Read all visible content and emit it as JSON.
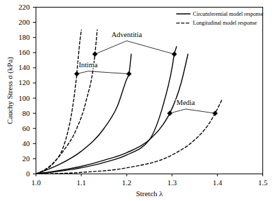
{
  "chart_data": {
    "type": "line",
    "x_label": "Stretch λ",
    "y_label": "Cauchy Stress σ (kPa)",
    "xlim": [
      1.0,
      1.5
    ],
    "ylim": [
      0,
      220
    ],
    "xticks": [
      {
        "value": 1.0,
        "label": "1.0"
      },
      {
        "value": 1.1,
        "label": "1.1"
      },
      {
        "value": 1.2,
        "label": "1.2"
      },
      {
        "value": 1.3,
        "label": "1.3"
      },
      {
        "value": 1.4,
        "label": "1.4"
      },
      {
        "value": 1.5,
        "label": "1.5"
      }
    ],
    "yticks": [
      0,
      20,
      40,
      60,
      80,
      100,
      120,
      140,
      160,
      180,
      200,
      220
    ],
    "grid": false,
    "legend": "top-right",
    "legend_items": [
      {
        "label": "Circumferential model response",
        "line_style": "solid"
      },
      {
        "label": "Longitudinal model response",
        "line_style": "dashed"
      }
    ],
    "series": [
      {
        "name": "Intima",
        "line_style": "dashed",
        "color": "#000000",
        "x": [
          1.0,
          1.02,
          1.04,
          1.06,
          1.07,
          1.08,
          1.09,
          1.095,
          1.1
        ],
        "values": [
          0,
          5,
          15,
          35,
          55,
          85,
          132,
          165,
          190
        ]
      },
      {
        "name": "Intima",
        "line_style": "solid",
        "color": "#000000",
        "x": [
          1.0,
          1.05,
          1.1,
          1.15,
          1.18,
          1.2,
          1.205,
          1.21
        ],
        "values": [
          0,
          12,
          30,
          60,
          90,
          125,
          132,
          158
        ]
      },
      {
        "name": "Adventitia",
        "line_style": "dashed",
        "color": "#000000",
        "x": [
          1.0,
          1.03,
          1.06,
          1.09,
          1.11,
          1.13,
          1.135
        ],
        "values": [
          0,
          10,
          30,
          60,
          95,
          158,
          190
        ]
      },
      {
        "name": "Adventitia",
        "line_style": "solid",
        "color": "#000000",
        "x": [
          1.0,
          1.1,
          1.15,
          1.2,
          1.25,
          1.28,
          1.3,
          1.305,
          1.31
        ],
        "values": [
          0,
          8,
          15,
          25,
          45,
          90,
          140,
          158,
          168
        ]
      },
      {
        "name": "Media",
        "line_style": "solid",
        "color": "#000000",
        "x": [
          1.0,
          1.1,
          1.15,
          1.2,
          1.25,
          1.28,
          1.295,
          1.32,
          1.335
        ],
        "values": [
          0,
          10,
          18,
          28,
          45,
          65,
          80,
          120,
          158
        ]
      },
      {
        "name": "Media",
        "line_style": "dashed",
        "color": "#000000",
        "x": [
          1.0,
          1.1,
          1.2,
          1.3,
          1.35,
          1.38,
          1.395,
          1.41
        ],
        "values": [
          0,
          2,
          8,
          25,
          45,
          65,
          80,
          98
        ]
      }
    ],
    "annotations": [
      {
        "text": "Intima",
        "x": 1.115,
        "y": 140,
        "marker": "diamond",
        "points": [
          [
            1.09,
            132
          ],
          [
            1.205,
            132
          ]
        ]
      },
      {
        "text": "Adventitia",
        "x": 1.2,
        "y": 180,
        "marker": "diamond",
        "points": [
          [
            1.13,
            158
          ],
          [
            1.305,
            158
          ]
        ]
      },
      {
        "text": "Media",
        "x": 1.33,
        "y": 90,
        "marker": "diamond",
        "points": [
          [
            1.295,
            80
          ],
          [
            1.395,
            80
          ]
        ]
      }
    ]
  }
}
